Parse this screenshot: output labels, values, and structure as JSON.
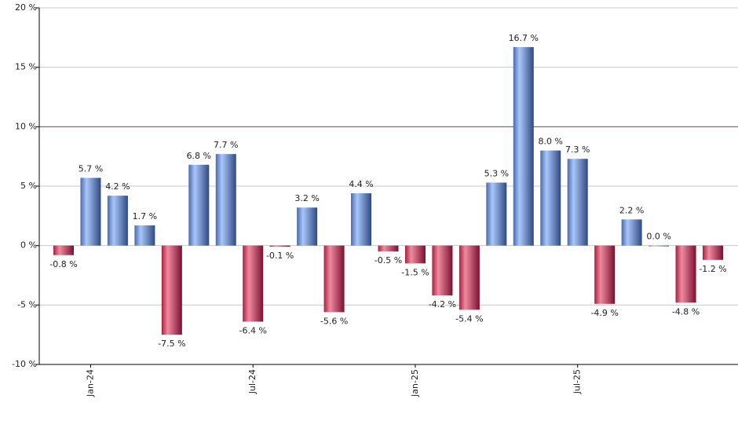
{
  "chart_data": {
    "type": "bar",
    "categories": [
      null,
      "Jan-24",
      null,
      null,
      null,
      null,
      null,
      "Jul-24",
      null,
      null,
      null,
      null,
      null,
      "Jan-25",
      null,
      null,
      null,
      null,
      null,
      "Jul-25",
      null,
      null,
      null,
      null,
      null
    ],
    "values": [
      -0.8,
      5.7,
      4.2,
      1.7,
      -7.5,
      6.8,
      7.7,
      -6.4,
      -0.1,
      3.2,
      -5.6,
      4.4,
      -0.5,
      -1.5,
      -4.2,
      -5.4,
      5.3,
      16.7,
      8.0,
      7.3,
      -4.9,
      2.2,
      0.0,
      -4.8,
      -1.2
    ],
    "value_labels": [
      "-0.8 %",
      "5.7 %",
      "4.2 %",
      "1.7 %",
      "-7.5 %",
      "6.8 %",
      "7.7 %",
      "-6.4 %",
      "-0.1 %",
      "3.2 %",
      "-5.6 %",
      "4.4 %",
      "-0.5 %",
      "-1.5 %",
      "-4.2 %",
      "-5.4 %",
      "5.3 %",
      "16.7 %",
      "8.0 %",
      "7.3 %",
      "-4.9 %",
      "2.2 %",
      "0.0 %",
      "-4.8 %",
      "-1.2 %"
    ],
    "positive_color": "#6f8fd0",
    "negative_color": "#c0304f",
    "ylim": [
      -10,
      20
    ],
    "yticks": [
      {
        "value": -10,
        "label": "-10 %"
      },
      {
        "value": -5,
        "label": "-5 %"
      },
      {
        "value": 0,
        "label": "0 %"
      },
      {
        "value": 5,
        "label": "5 %"
      },
      {
        "value": 10,
        "label": "10 %"
      },
      {
        "value": 15,
        "label": "15 %"
      },
      {
        "value": 20,
        "label": "20 %"
      }
    ],
    "grid": true,
    "reference_line": {
      "value": 10,
      "color": "#2e7d32"
    }
  }
}
